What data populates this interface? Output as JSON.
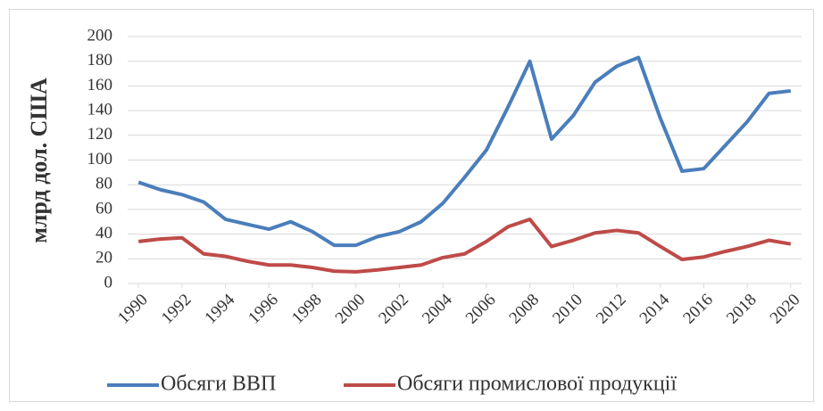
{
  "chart_data": {
    "type": "line",
    "y_label": "млрд дол. США",
    "x": [
      1990,
      1991,
      1992,
      1993,
      1994,
      1995,
      1996,
      1997,
      1998,
      1999,
      2000,
      2001,
      2002,
      2003,
      2004,
      2005,
      2006,
      2007,
      2008,
      2009,
      2010,
      2011,
      2012,
      2013,
      2014,
      2015,
      2016,
      2017,
      2018,
      2019,
      2020
    ],
    "series": [
      {
        "name": "Обсяги ВВП",
        "color": "#4a7ebb",
        "values": [
          82,
          76,
          72,
          66,
          52,
          48,
          44,
          50,
          42,
          31,
          31,
          38,
          42,
          50,
          65,
          86,
          108,
          143,
          180,
          117,
          136,
          163,
          176,
          183,
          134,
          91,
          93,
          112,
          131,
          154,
          156
        ]
      },
      {
        "name": "Обсяги промислової продукції",
        "color": "#be4b48",
        "values": [
          34,
          36,
          37,
          24,
          22,
          18,
          15,
          15,
          13,
          10,
          9.5,
          11,
          13,
          15,
          21,
          24,
          34,
          46,
          52,
          30,
          35,
          41,
          43,
          41,
          30,
          19.5,
          21.5,
          26,
          30,
          35,
          32
        ]
      }
    ],
    "xlim": [
      1990,
      2020
    ],
    "xticks": [
      1990,
      1992,
      1994,
      1996,
      1998,
      2000,
      2002,
      2004,
      2006,
      2008,
      2010,
      2012,
      2014,
      2016,
      2018,
      2020
    ],
    "ylim": [
      0,
      200
    ],
    "yticks": [
      0,
      20,
      40,
      60,
      80,
      100,
      120,
      140,
      160,
      180,
      200
    ],
    "grid": true,
    "legend": "bottom"
  }
}
